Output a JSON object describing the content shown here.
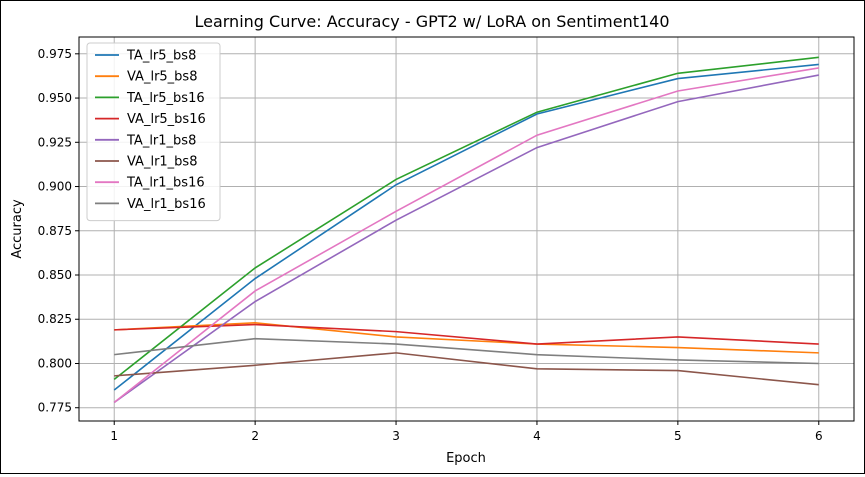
{
  "chart_data": {
    "type": "line",
    "title": "Learning Curve: Accuracy - GPT2 w/ LoRA on Sentiment140",
    "xlabel": "Epoch",
    "ylabel": "Accuracy",
    "x": [
      1,
      2,
      3,
      4,
      5,
      6
    ],
    "xlim": [
      0.75,
      6.25
    ],
    "ylim": [
      0.7675,
      0.9845
    ],
    "xticks": [
      "1",
      "2",
      "3",
      "4",
      "5",
      "6"
    ],
    "yticks": [
      "0.775",
      "0.800",
      "0.825",
      "0.850",
      "0.875",
      "0.900",
      "0.925",
      "0.950",
      "0.975"
    ],
    "grid": true,
    "legend_position": "top-left",
    "series": [
      {
        "name": "TA_lr5_bs8",
        "color": "#1f77b4",
        "values": [
          0.785,
          0.848,
          0.901,
          0.941,
          0.961,
          0.969
        ]
      },
      {
        "name": "VA_lr5_bs8",
        "color": "#ff7f0e",
        "values": [
          0.819,
          0.823,
          0.815,
          0.811,
          0.809,
          0.806
        ]
      },
      {
        "name": "TA_lr5_bs16",
        "color": "#2ca02c",
        "values": [
          0.791,
          0.854,
          0.904,
          0.942,
          0.964,
          0.973
        ]
      },
      {
        "name": "VA_lr5_bs16",
        "color": "#d62728",
        "values": [
          0.819,
          0.822,
          0.818,
          0.811,
          0.815,
          0.811
        ]
      },
      {
        "name": "TA_lr1_bs8",
        "color": "#9467bd",
        "values": [
          0.778,
          0.835,
          0.881,
          0.922,
          0.948,
          0.963
        ]
      },
      {
        "name": "VA_lr1_bs8",
        "color": "#8c564b",
        "values": [
          0.793,
          0.799,
          0.806,
          0.797,
          0.796,
          0.788
        ]
      },
      {
        "name": "TA_lr1_bs16",
        "color": "#e377c2",
        "values": [
          0.778,
          0.841,
          0.886,
          0.929,
          0.954,
          0.967
        ]
      },
      {
        "name": "VA_lr1_bs16",
        "color": "#7f7f7f",
        "values": [
          0.805,
          0.814,
          0.811,
          0.805,
          0.802,
          0.8
        ]
      }
    ]
  }
}
